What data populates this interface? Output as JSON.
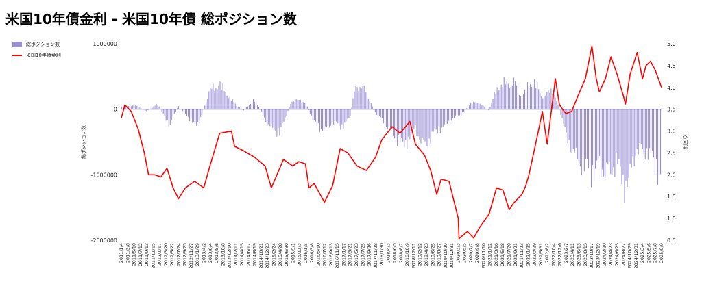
{
  "chart_data": {
    "type": "bar+line",
    "title": "米国10年債金利 - 米国10年債 総ポジション数",
    "legend_position": "top-left",
    "series": [
      {
        "name": "総ポジション数",
        "type": "bar",
        "axis": "left",
        "color": "#9a8fd4",
        "points": [
          [
            "2011/1/4",
            40000
          ],
          [
            "2011/6/1",
            60000
          ],
          [
            "2011/9/13",
            -30000
          ],
          [
            "2012/1/1",
            80000
          ],
          [
            "2012/5/1",
            -250000
          ],
          [
            "2012/7/24",
            50000
          ],
          [
            "2013/1/29",
            -280000
          ],
          [
            "2013/6/4",
            300000
          ],
          [
            "2013/9/6",
            400000
          ],
          [
            "2013/12/10",
            200000
          ],
          [
            "2014/2/1",
            100000
          ],
          [
            "2014/5/1",
            -20000
          ],
          [
            "2014/8/19",
            150000
          ],
          [
            "2014/10/21",
            -10000
          ],
          [
            "2015/1/1",
            -250000
          ],
          [
            "2015/4/28",
            -380000
          ],
          [
            "2015/7/1",
            -100000
          ],
          [
            "2015/9/1",
            150000
          ],
          [
            "2016/1/5",
            120000
          ],
          [
            "2016/4/1",
            -200000
          ],
          [
            "2016/7/12",
            -350000
          ],
          [
            "2016/10/1",
            -200000
          ],
          [
            "2017/1/1",
            -280000
          ],
          [
            "2017/3/21",
            -150000
          ],
          [
            "2017/5/23",
            380000
          ],
          [
            "2017/8/29",
            300000
          ],
          [
            "2017/11/28",
            -50000
          ],
          [
            "2018/3/1",
            -200000
          ],
          [
            "2018/6/5",
            -420000
          ],
          [
            "2018/9/11",
            -580000
          ],
          [
            "2019/1/1",
            -300000
          ],
          [
            "2019/4/1",
            -600000
          ],
          [
            "2019/7/1",
            -380000
          ],
          [
            "2019/10/29",
            -250000
          ],
          [
            "2020/1/1",
            -150000
          ],
          [
            "2020/4/1",
            -80000
          ],
          [
            "2020/7/1",
            80000
          ],
          [
            "2020/9/8",
            120000
          ],
          [
            "2021/1/1",
            -20000
          ],
          [
            "2021/3/16",
            300000
          ],
          [
            "2021/5/18",
            420000
          ],
          [
            "2021/7/20",
            380000
          ],
          [
            "2021/9/1",
            460000
          ],
          [
            "2021/11/23",
            200000
          ],
          [
            "2022/1/25",
            350000
          ],
          [
            "2022/4/1",
            450000
          ],
          [
            "2022/6/7",
            200000
          ],
          [
            "2022/10/4",
            300000
          ],
          [
            "2023/1/1",
            -150000
          ],
          [
            "2023/2/7",
            -420000
          ],
          [
            "2023/6/1",
            -800000
          ],
          [
            "2023/8/15",
            -900000
          ],
          [
            "2023/10/24",
            -1000000
          ],
          [
            "2024/1/1",
            -900000
          ],
          [
            "2024/4/23",
            -1000000
          ],
          [
            "2024/6/25",
            -800000
          ],
          [
            "2024/8/27",
            -1200000
          ],
          [
            "2024/10/29",
            -1100000
          ],
          [
            "2025/1/7",
            -600000
          ],
          [
            "2025/3/4",
            -700000
          ],
          [
            "2025/5/6",
            -650000
          ],
          [
            "2025/7/8",
            -900000
          ],
          [
            "2025/9/9",
            -1050000
          ]
        ]
      },
      {
        "name": "米国10年債金利",
        "type": "line",
        "axis": "right",
        "color": "#ff0000",
        "points": [
          [
            "2011/1/4",
            3.3
          ],
          [
            "2011/2/8",
            3.6
          ],
          [
            "2011/4/12",
            3.45
          ],
          [
            "2011/6/20",
            3.05
          ],
          [
            "2011/8/20",
            2.5
          ],
          [
            "2011/10/1",
            2.0
          ],
          [
            "2011/12/1",
            2.0
          ],
          [
            "2012/2/1",
            1.95
          ],
          [
            "2012/4/1",
            2.15
          ],
          [
            "2012/6/1",
            1.7
          ],
          [
            "2012/7/24",
            1.45
          ],
          [
            "2012/10/1",
            1.7
          ],
          [
            "2013/1/1",
            1.85
          ],
          [
            "2013/4/1",
            1.7
          ],
          [
            "2013/6/1",
            2.2
          ],
          [
            "2013/9/6",
            2.95
          ],
          [
            "2013/12/31",
            3.0
          ],
          [
            "2014/2/1",
            2.65
          ],
          [
            "2014/5/1",
            2.55
          ],
          [
            "2014/8/19",
            2.4
          ],
          [
            "2014/12/1",
            2.2
          ],
          [
            "2015/2/1",
            1.7
          ],
          [
            "2015/6/1",
            2.35
          ],
          [
            "2015/9/1",
            2.2
          ],
          [
            "2015/11/1",
            2.3
          ],
          [
            "2016/1/5",
            2.25
          ],
          [
            "2016/2/10",
            1.7
          ],
          [
            "2016/4/1",
            1.8
          ],
          [
            "2016/7/12",
            1.37
          ],
          [
            "2016/10/1",
            1.75
          ],
          [
            "2016/12/15",
            2.6
          ],
          [
            "2017/3/1",
            2.5
          ],
          [
            "2017/6/1",
            2.2
          ],
          [
            "2017/9/1",
            2.1
          ],
          [
            "2017/12/1",
            2.4
          ],
          [
            "2018/2/1",
            2.8
          ],
          [
            "2018/5/15",
            3.1
          ],
          [
            "2018/8/1",
            2.95
          ],
          [
            "2018/11/8",
            3.22
          ],
          [
            "2019/1/1",
            2.7
          ],
          [
            "2019/4/1",
            2.45
          ],
          [
            "2019/6/1",
            2.1
          ],
          [
            "2019/8/1",
            1.55
          ],
          [
            "2019/9/13",
            1.9
          ],
          [
            "2019/12/1",
            1.85
          ],
          [
            "2020/3/1",
            1.0
          ],
          [
            "2020/3/9",
            0.54
          ],
          [
            "2020/6/1",
            0.7
          ],
          [
            "2020/8/1",
            0.55
          ],
          [
            "2020/10/1",
            0.8
          ],
          [
            "2021/1/1",
            1.1
          ],
          [
            "2021/3/16",
            1.7
          ],
          [
            "2021/5/18",
            1.65
          ],
          [
            "2021/7/20",
            1.2
          ],
          [
            "2021/9/1",
            1.35
          ],
          [
            "2021/11/23",
            1.55
          ],
          [
            "2022/1/1",
            1.75
          ],
          [
            "2022/2/1",
            2.0
          ],
          [
            "2022/5/1",
            2.95
          ],
          [
            "2022/6/14",
            3.45
          ],
          [
            "2022/8/1",
            2.7
          ],
          [
            "2022/10/21",
            4.2
          ],
          [
            "2022/12/1",
            3.6
          ],
          [
            "2023/2/1",
            3.4
          ],
          [
            "2023/4/1",
            3.45
          ],
          [
            "2023/6/1",
            3.8
          ],
          [
            "2023/8/15",
            4.2
          ],
          [
            "2023/10/19",
            4.95
          ],
          [
            "2023/12/1",
            4.2
          ],
          [
            "2024/1/1",
            3.9
          ],
          [
            "2024/3/1",
            4.2
          ],
          [
            "2024/4/25",
            4.7
          ],
          [
            "2024/6/25",
            4.3
          ],
          [
            "2024/8/27",
            3.8
          ],
          [
            "2024/9/16",
            3.62
          ],
          [
            "2024/11/1",
            4.3
          ],
          [
            "2025/1/10",
            4.8
          ],
          [
            "2025/3/4",
            4.2
          ],
          [
            "2025/4/8",
            4.5
          ],
          [
            "2025/5/22",
            4.6
          ],
          [
            "2025/7/8",
            4.4
          ],
          [
            "2025/9/9",
            4.0
          ]
        ]
      }
    ],
    "left_axis": {
      "label": "総ポジション数",
      "min": -2000000,
      "max": 1000000,
      "ticks": [
        1000000,
        0,
        -1000000,
        -2000000
      ],
      "tick_labels": [
        "1000000",
        "0",
        "-1000000",
        "-2000000"
      ]
    },
    "right_axis": {
      "label": "利回り",
      "min": 0.5,
      "max": 5.0,
      "ticks": [
        5.0,
        4.5,
        4.0,
        3.5,
        3.0,
        2.5,
        2.0,
        1.5,
        1.0,
        0.5
      ],
      "tick_labels": [
        "5.0",
        "4.5",
        "4.0",
        "3.5",
        "3.0",
        "2.5",
        "2.0",
        "1.5",
        "1.0",
        "0.5"
      ]
    },
    "x_axis": {
      "start": "2011/1/4",
      "end": "2025/9/9",
      "tick_labels": [
        "2011/1/4",
        "2011/3/8",
        "2011/5/10",
        "2011/7/12",
        "2011/9/13",
        "2011/11/15",
        "2012/1/17",
        "2012/3/20",
        "2012/5/22",
        "2012/7/24",
        "2012/9/25",
        "2012/11/27",
        "2013/1/29",
        "2013/4/2",
        "2013/6/4",
        "2013/8/6",
        "2013/10/8",
        "2013/12/10",
        "2014/2/11",
        "2014/4/15",
        "2014/6/17",
        "2014/8/19",
        "2014/10/21",
        "2014/12/23",
        "2015/2/24",
        "2015/4/28",
        "2015/6/30",
        "2015/9/1",
        "2015/11/3",
        "2016/1/5",
        "2016/3/8",
        "2016/5/10",
        "2016/7/12",
        "2016/9/13",
        "2016/11/15",
        "2017/1/17",
        "2017/3/21",
        "2017/5/23",
        "2017/7/25",
        "2017/9/26",
        "2017/11/28",
        "2018/1/30",
        "2018/4/3",
        "2018/6/5",
        "2018/8/7",
        "2018/10/9",
        "2018/12/11",
        "2019/2/12",
        "2019/4/23",
        "2019/6/25",
        "2019/8/27",
        "2019/10/29",
        "2019/12/31",
        "2020/3/3",
        "2020/5/5",
        "2020/7/7",
        "2020/9/8",
        "2020/11/10",
        "2021/1/12",
        "2021/3/16",
        "2021/5/18",
        "2021/7/20",
        "2021/9/21",
        "2021/11/23",
        "2022/1/25",
        "2022/3/29",
        "2022/5/31",
        "2022/8/2",
        "2022/10/4",
        "2022/12/6",
        "2023/2/7",
        "2023/4/11",
        "2023/6/13",
        "2023/8/15",
        "2023/10/17",
        "2023/12/19",
        "2024/2/20",
        "2024/4/23",
        "2024/6/25",
        "2024/8/27",
        "2024/10/29",
        "2024/12/31",
        "2025/3/4",
        "2025/5/6",
        "2025/7/8",
        "2025/9/9"
      ]
    },
    "grid": false
  }
}
